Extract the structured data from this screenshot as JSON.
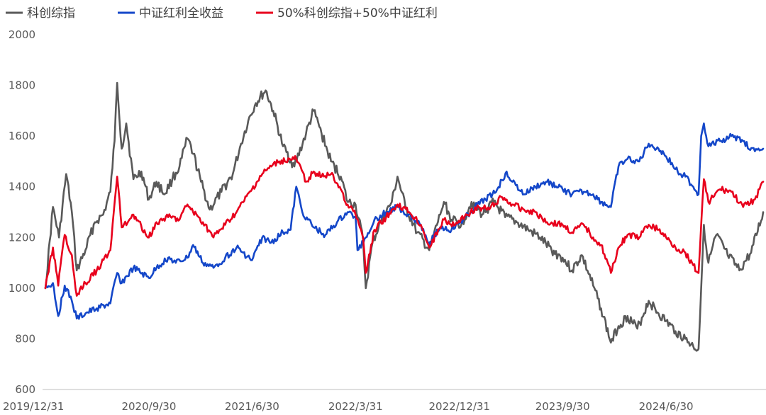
{
  "chart_data": {
    "type": "line",
    "ylim": [
      600,
      2000
    ],
    "y_ticks": [
      "2000",
      "1800",
      "1600",
      "1400",
      "1200",
      "1000",
      "800",
      "600"
    ],
    "x_ticks": [
      "2019/12/31",
      "2020/9/30",
      "2021/6/30",
      "2022/3/31",
      "2022/12/31",
      "2023/9/30",
      "2024/6/30"
    ],
    "x_range": [
      "2019/12/31",
      "2025/3/14"
    ],
    "grid": false,
    "legend_position": "top-left",
    "series": [
      {
        "name": "科创综指",
        "color": "#595959",
        "points": [
          [
            "2019/12/31",
            1000
          ],
          [
            "2020/1/20",
            1320
          ],
          [
            "2020/2/5",
            1200
          ],
          [
            "2020/2/24",
            1450
          ],
          [
            "2020/3/10",
            1300
          ],
          [
            "2020/3/23",
            1070
          ],
          [
            "2020/4/15",
            1150
          ],
          [
            "2020/5/10",
            1260
          ],
          [
            "2020/6/1",
            1290
          ],
          [
            "2020/6/20",
            1380
          ],
          [
            "2020/7/1",
            1580
          ],
          [
            "2020/7/8",
            1810
          ],
          [
            "2020/7/20",
            1550
          ],
          [
            "2020/8/1",
            1650
          ],
          [
            "2020/8/20",
            1430
          ],
          [
            "2020/9/10",
            1460
          ],
          [
            "2020/9/30",
            1350
          ],
          [
            "2020/10/20",
            1420
          ],
          [
            "2020/11/10",
            1370
          ],
          [
            "2020/12/1",
            1430
          ],
          [
            "2020/12/20",
            1480
          ],
          [
            "2021/1/10",
            1590
          ],
          [
            "2021/1/25",
            1530
          ],
          [
            "2021/2/15",
            1420
          ],
          [
            "2021/3/10",
            1310
          ],
          [
            "2021/4/10",
            1380
          ],
          [
            "2021/5/10",
            1450
          ],
          [
            "2021/6/1",
            1570
          ],
          [
            "2021/6/20",
            1660
          ],
          [
            "2021/7/10",
            1730
          ],
          [
            "2021/8/5",
            1780
          ],
          [
            "2021/8/25",
            1700
          ],
          [
            "2021/9/20",
            1560
          ],
          [
            "2021/10/20",
            1480
          ],
          [
            "2021/11/20",
            1610
          ],
          [
            "2021/12/10",
            1700
          ],
          [
            "2021/12/31",
            1610
          ],
          [
            "2022/1/25",
            1500
          ],
          [
            "2022/2/20",
            1440
          ],
          [
            "2022/3/10",
            1340
          ],
          [
            "2022/3/31",
            1330
          ],
          [
            "2022/4/20",
            1190
          ],
          [
            "2022/4/27",
            1000
          ],
          [
            "2022/5/15",
            1180
          ],
          [
            "2022/6/5",
            1260
          ],
          [
            "2022/7/5",
            1340
          ],
          [
            "2022/7/20",
            1440
          ],
          [
            "2022/8/10",
            1320
          ],
          [
            "2022/9/10",
            1220
          ],
          [
            "2022/10/12",
            1150
          ],
          [
            "2022/11/10",
            1290
          ],
          [
            "2022/11/20",
            1340
          ],
          [
            "2022/12/10",
            1270
          ],
          [
            "2023/1/5",
            1250
          ],
          [
            "2023/2/1",
            1340
          ],
          [
            "2023/3/1",
            1290
          ],
          [
            "2023/4/1",
            1340
          ],
          [
            "2023/5/1",
            1280
          ],
          [
            "2023/6/1",
            1260
          ],
          [
            "2023/7/1",
            1230
          ],
          [
            "2023/8/1",
            1200
          ],
          [
            "2023/9/1",
            1150
          ],
          [
            "2023/9/30",
            1120
          ],
          [
            "2023/10/25",
            1070
          ],
          [
            "2023/11/20",
            1130
          ],
          [
            "2023/12/20",
            1010
          ],
          [
            "2024/1/10",
            920
          ],
          [
            "2024/2/5",
            785
          ],
          [
            "2024/2/25",
            850
          ],
          [
            "2024/3/20",
            890
          ],
          [
            "2024/4/15",
            840
          ],
          [
            "2024/5/15",
            950
          ],
          [
            "2024/6/10",
            900
          ],
          [
            "2024/6/30",
            870
          ],
          [
            "2024/7/25",
            830
          ],
          [
            "2024/8/20",
            800
          ],
          [
            "2024/9/10",
            770
          ],
          [
            "2024/9/24",
            760
          ],
          [
            "2024/10/1",
            1000
          ],
          [
            "2024/10/8",
            1250
          ],
          [
            "2024/10/20",
            1100
          ],
          [
            "2024/11/10",
            1210
          ],
          [
            "2024/12/10",
            1130
          ],
          [
            "2025/1/10",
            1070
          ],
          [
            "2025/2/10",
            1140
          ],
          [
            "2025/3/14",
            1300
          ]
        ]
      },
      {
        "name": "中证红利全收益",
        "color": "#1447c9",
        "points": [
          [
            "2019/12/31",
            1000
          ],
          [
            "2020/1/20",
            1020
          ],
          [
            "2020/2/3",
            890
          ],
          [
            "2020/2/20",
            1010
          ],
          [
            "2020/3/10",
            950
          ],
          [
            "2020/3/23",
            880
          ],
          [
            "2020/4/15",
            900
          ],
          [
            "2020/5/15",
            920
          ],
          [
            "2020/6/20",
            940
          ],
          [
            "2020/7/8",
            1060
          ],
          [
            "2020/7/20",
            1020
          ],
          [
            "2020/8/20",
            1080
          ],
          [
            "2020/9/30",
            1040
          ],
          [
            "2020/10/20",
            1080
          ],
          [
            "2020/11/20",
            1120
          ],
          [
            "2020/12/10",
            1100
          ],
          [
            "2021/1/10",
            1120
          ],
          [
            "2021/1/25",
            1170
          ],
          [
            "2021/2/20",
            1100
          ],
          [
            "2021/3/20",
            1080
          ],
          [
            "2021/4/20",
            1120
          ],
          [
            "2021/5/20",
            1160
          ],
          [
            "2021/6/30",
            1110
          ],
          [
            "2021/7/27",
            1200
          ],
          [
            "2021/8/20",
            1180
          ],
          [
            "2021/9/20",
            1220
          ],
          [
            "2021/10/10",
            1230
          ],
          [
            "2021/10/25",
            1400
          ],
          [
            "2021/11/10",
            1300
          ],
          [
            "2021/12/10",
            1240
          ],
          [
            "2022/1/10",
            1210
          ],
          [
            "2022/2/10",
            1260
          ],
          [
            "2022/3/10",
            1300
          ],
          [
            "2022/3/31",
            1280
          ],
          [
            "2022/4/5",
            1150
          ],
          [
            "2022/4/27",
            1200
          ],
          [
            "2022/5/20",
            1270
          ],
          [
            "2022/6/20",
            1300
          ],
          [
            "2022/7/20",
            1320
          ],
          [
            "2022/8/20",
            1290
          ],
          [
            "2022/9/20",
            1250
          ],
          [
            "2022/10/12",
            1180
          ],
          [
            "2022/11/10",
            1240
          ],
          [
            "2022/12/10",
            1230
          ],
          [
            "2023/1/10",
            1270
          ],
          [
            "2023/2/10",
            1320
          ],
          [
            "2023/3/10",
            1350
          ],
          [
            "2023/4/10",
            1390
          ],
          [
            "2023/5/5",
            1460
          ],
          [
            "2023/5/20",
            1420
          ],
          [
            "2023/6/20",
            1370
          ],
          [
            "2023/7/20",
            1400
          ],
          [
            "2023/8/20",
            1420
          ],
          [
            "2023/9/30",
            1390
          ],
          [
            "2023/10/25",
            1370
          ],
          [
            "2023/11/25",
            1380
          ],
          [
            "2023/12/20",
            1370
          ],
          [
            "2024/1/10",
            1340
          ],
          [
            "2024/2/5",
            1320
          ],
          [
            "2024/2/25",
            1480
          ],
          [
            "2024/3/20",
            1510
          ],
          [
            "2024/4/20",
            1500
          ],
          [
            "2024/5/15",
            1570
          ],
          [
            "2024/6/10",
            1550
          ],
          [
            "2024/6/30",
            1520
          ],
          [
            "2024/7/25",
            1470
          ],
          [
            "2024/8/20",
            1440
          ],
          [
            "2024/9/10",
            1400
          ],
          [
            "2024/9/24",
            1370
          ],
          [
            "2024/10/1",
            1600
          ],
          [
            "2024/10/8",
            1650
          ],
          [
            "2024/10/20",
            1560
          ],
          [
            "2024/11/20",
            1580
          ],
          [
            "2024/12/20",
            1600
          ],
          [
            "2025/1/20",
            1580
          ],
          [
            "2025/2/20",
            1540
          ],
          [
            "2025/3/14",
            1550
          ]
        ]
      },
      {
        "name": "50%科创综指+50%中证红利",
        "color": "#e8001c",
        "points": [
          [
            "2019/12/31",
            1000
          ],
          [
            "2020/1/20",
            1160
          ],
          [
            "2020/2/3",
            1010
          ],
          [
            "2020/2/20",
            1210
          ],
          [
            "2020/3/10",
            1130
          ],
          [
            "2020/3/23",
            970
          ],
          [
            "2020/4/15",
            1020
          ],
          [
            "2020/5/15",
            1070
          ],
          [
            "2020/6/20",
            1150
          ],
          [
            "2020/7/8",
            1440
          ],
          [
            "2020/7/20",
            1240
          ],
          [
            "2020/8/20",
            1290
          ],
          [
            "2020/9/30",
            1200
          ],
          [
            "2020/10/20",
            1260
          ],
          [
            "2020/11/20",
            1280
          ],
          [
            "2020/12/20",
            1270
          ],
          [
            "2021/1/10",
            1330
          ],
          [
            "2021/1/25",
            1300
          ],
          [
            "2021/2/20",
            1260
          ],
          [
            "2021/3/20",
            1200
          ],
          [
            "2021/4/20",
            1250
          ],
          [
            "2021/5/20",
            1300
          ],
          [
            "2021/6/30",
            1390
          ],
          [
            "2021/7/27",
            1450
          ],
          [
            "2021/8/20",
            1480
          ],
          [
            "2021/9/10",
            1500
          ],
          [
            "2021/10/25",
            1510
          ],
          [
            "2021/11/20",
            1420
          ],
          [
            "2021/12/10",
            1460
          ],
          [
            "2021/12/31",
            1440
          ],
          [
            "2022/1/25",
            1450
          ],
          [
            "2022/2/20",
            1390
          ],
          [
            "2022/3/10",
            1330
          ],
          [
            "2022/3/31",
            1290
          ],
          [
            "2022/4/20",
            1200
          ],
          [
            "2022/4/27",
            1060
          ],
          [
            "2022/5/20",
            1230
          ],
          [
            "2022/6/20",
            1280
          ],
          [
            "2022/7/20",
            1330
          ],
          [
            "2022/8/20",
            1300
          ],
          [
            "2022/9/20",
            1250
          ],
          [
            "2022/10/12",
            1160
          ],
          [
            "2022/11/20",
            1270
          ],
          [
            "2022/12/20",
            1250
          ],
          [
            "2023/1/20",
            1290
          ],
          [
            "2023/2/20",
            1320
          ],
          [
            "2023/3/20",
            1310
          ],
          [
            "2023/4/20",
            1360
          ],
          [
            "2023/5/20",
            1330
          ],
          [
            "2023/6/20",
            1310
          ],
          [
            "2023/7/20",
            1300
          ],
          [
            "2023/8/20",
            1260
          ],
          [
            "2023/9/30",
            1250
          ],
          [
            "2023/10/25",
            1220
          ],
          [
            "2023/11/25",
            1250
          ],
          [
            "2023/12/20",
            1200
          ],
          [
            "2024/1/10",
            1170
          ],
          [
            "2024/2/5",
            1060
          ],
          [
            "2024/2/25",
            1160
          ],
          [
            "2024/3/20",
            1210
          ],
          [
            "2024/4/20",
            1200
          ],
          [
            "2024/5/15",
            1250
          ],
          [
            "2024/6/10",
            1230
          ],
          [
            "2024/6/30",
            1200
          ],
          [
            "2024/7/25",
            1160
          ],
          [
            "2024/8/20",
            1140
          ],
          [
            "2024/9/10",
            1090
          ],
          [
            "2024/9/24",
            1060
          ],
          [
            "2024/10/1",
            1250
          ],
          [
            "2024/10/8",
            1430
          ],
          [
            "2024/10/20",
            1340
          ],
          [
            "2024/11/20",
            1390
          ],
          [
            "2024/12/20",
            1380
          ],
          [
            "2025/1/20",
            1320
          ],
          [
            "2025/2/20",
            1350
          ],
          [
            "2025/3/14",
            1420
          ]
        ]
      }
    ]
  }
}
